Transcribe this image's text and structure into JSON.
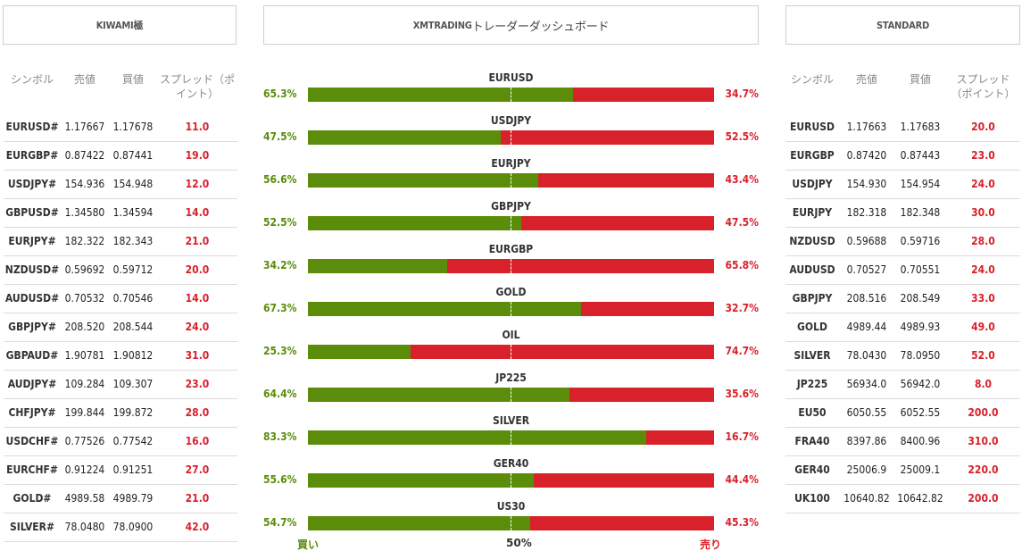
{
  "left": {
    "title": "KIWAMI極",
    "headers": {
      "symbol": "シンボル",
      "bid": "売値",
      "ask": "買値",
      "spread": "スプレッド（ポイント）"
    },
    "rows": [
      {
        "symbol": "EURUSD#",
        "bid": "1.17667",
        "ask": "1.17678",
        "spread": "11.0"
      },
      {
        "symbol": "EURGBP#",
        "bid": "0.87422",
        "ask": "0.87441",
        "spread": "19.0"
      },
      {
        "symbol": "USDJPY#",
        "bid": "154.936",
        "ask": "154.948",
        "spread": "12.0"
      },
      {
        "symbol": "GBPUSD#",
        "bid": "1.34580",
        "ask": "1.34594",
        "spread": "14.0"
      },
      {
        "symbol": "EURJPY#",
        "bid": "182.322",
        "ask": "182.343",
        "spread": "21.0"
      },
      {
        "symbol": "NZDUSD#",
        "bid": "0.59692",
        "ask": "0.59712",
        "spread": "20.0"
      },
      {
        "symbol": "AUDUSD#",
        "bid": "0.70532",
        "ask": "0.70546",
        "spread": "14.0"
      },
      {
        "symbol": "GBPJPY#",
        "bid": "208.520",
        "ask": "208.544",
        "spread": "24.0"
      },
      {
        "symbol": "GBPAUD#",
        "bid": "1.90781",
        "ask": "1.90812",
        "spread": "31.0"
      },
      {
        "symbol": "AUDJPY#",
        "bid": "109.284",
        "ask": "109.307",
        "spread": "23.0"
      },
      {
        "symbol": "CHFJPY#",
        "bid": "199.844",
        "ask": "199.872",
        "spread": "28.0"
      },
      {
        "symbol": "USDCHF#",
        "bid": "0.77526",
        "ask": "0.77542",
        "spread": "16.0"
      },
      {
        "symbol": "EURCHF#",
        "bid": "0.91224",
        "ask": "0.91251",
        "spread": "27.0"
      },
      {
        "symbol": "GOLD#",
        "bid": "4989.58",
        "ask": "4989.79",
        "spread": "21.0"
      },
      {
        "symbol": "SILVER#",
        "bid": "78.0480",
        "ask": "78.0900",
        "spread": "42.0"
      }
    ]
  },
  "center": {
    "title_prefix": "XMTRADING",
    "title_jp": "トレーダーダッシュボード",
    "rows": [
      {
        "pair": "EURUSD",
        "buy": 65.3,
        "sell": 34.7,
        "buy_label": "65.3%",
        "sell_label": "34.7%"
      },
      {
        "pair": "USDJPY",
        "buy": 47.5,
        "sell": 52.5,
        "buy_label": "47.5%",
        "sell_label": "52.5%"
      },
      {
        "pair": "EURJPY",
        "buy": 56.6,
        "sell": 43.4,
        "buy_label": "56.6%",
        "sell_label": "43.4%"
      },
      {
        "pair": "GBPJPY",
        "buy": 52.5,
        "sell": 47.5,
        "buy_label": "52.5%",
        "sell_label": "47.5%"
      },
      {
        "pair": "EURGBP",
        "buy": 34.2,
        "sell": 65.8,
        "buy_label": "34.2%",
        "sell_label": "65.8%"
      },
      {
        "pair": "GOLD",
        "buy": 67.3,
        "sell": 32.7,
        "buy_label": "67.3%",
        "sell_label": "32.7%"
      },
      {
        "pair": "OIL",
        "buy": 25.3,
        "sell": 74.7,
        "buy_label": "25.3%",
        "sell_label": "74.7%"
      },
      {
        "pair": "JP225",
        "buy": 64.4,
        "sell": 35.6,
        "buy_label": "64.4%",
        "sell_label": "35.6%"
      },
      {
        "pair": "SILVER",
        "buy": 83.3,
        "sell": 16.7,
        "buy_label": "83.3%",
        "sell_label": "16.7%"
      },
      {
        "pair": "GER40",
        "buy": 55.6,
        "sell": 44.4,
        "buy_label": "55.6%",
        "sell_label": "44.4%"
      },
      {
        "pair": "US30",
        "buy": 54.7,
        "sell": 45.3,
        "buy_label": "54.7%",
        "sell_label": "45.3%"
      }
    ],
    "footer": {
      "buy_label": "買い",
      "mid_label": "50%",
      "sell_label": "売り"
    },
    "colors": {
      "buy": "#5b8c0a",
      "sell": "#d8212b"
    }
  },
  "right": {
    "title": "STANDARD",
    "headers": {
      "symbol": "シンボル",
      "bid": "売値",
      "ask": "買値",
      "spread": "スプレッド（ポイント）"
    },
    "rows": [
      {
        "symbol": "EURUSD",
        "bid": "1.17663",
        "ask": "1.17683",
        "spread": "20.0"
      },
      {
        "symbol": "EURGBP",
        "bid": "0.87420",
        "ask": "0.87443",
        "spread": "23.0"
      },
      {
        "symbol": "USDJPY",
        "bid": "154.930",
        "ask": "154.954",
        "spread": "24.0"
      },
      {
        "symbol": "EURJPY",
        "bid": "182.318",
        "ask": "182.348",
        "spread": "30.0"
      },
      {
        "symbol": "NZDUSD",
        "bid": "0.59688",
        "ask": "0.59716",
        "spread": "28.0"
      },
      {
        "symbol": "AUDUSD",
        "bid": "0.70527",
        "ask": "0.70551",
        "spread": "24.0"
      },
      {
        "symbol": "GBPJPY",
        "bid": "208.516",
        "ask": "208.549",
        "spread": "33.0"
      },
      {
        "symbol": "GOLD",
        "bid": "4989.44",
        "ask": "4989.93",
        "spread": "49.0"
      },
      {
        "symbol": "SILVER",
        "bid": "78.0430",
        "ask": "78.0950",
        "spread": "52.0"
      },
      {
        "symbol": "JP225",
        "bid": "56934.0",
        "ask": "56942.0",
        "spread": "8.0"
      },
      {
        "symbol": "EU50",
        "bid": "6050.55",
        "ask": "6052.55",
        "spread": "200.0"
      },
      {
        "symbol": "FRA40",
        "bid": "8397.86",
        "ask": "8400.96",
        "spread": "310.0"
      },
      {
        "symbol": "GER40",
        "bid": "25006.9",
        "ask": "25009.1",
        "spread": "220.0"
      },
      {
        "symbol": "UK100",
        "bid": "10640.82",
        "ask": "10642.82",
        "spread": "200.0"
      }
    ]
  }
}
